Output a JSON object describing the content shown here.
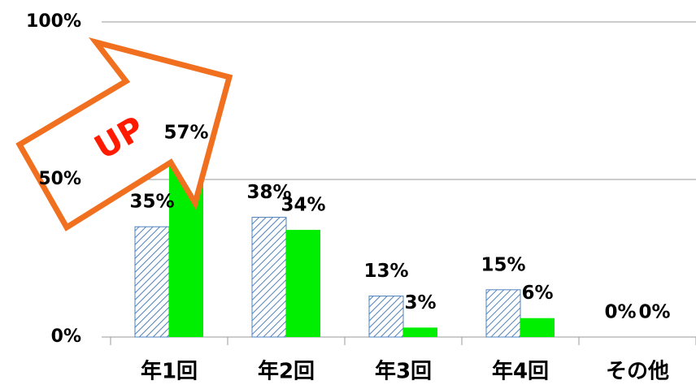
{
  "chart_data": {
    "type": "bar",
    "categories": [
      "年1回",
      "年2回",
      "年3回",
      "年4回",
      "その他"
    ],
    "series": [
      {
        "color": "#4f81bd",
        "hatch": true,
        "values": [
          35,
          38,
          13,
          15,
          0
        ],
        "value_labels": [
          "35%",
          "38%",
          "13%",
          "15%",
          "0%"
        ]
      },
      {
        "color": "#00ee00",
        "hatch": false,
        "values": [
          57,
          34,
          3,
          6,
          0
        ],
        "value_labels": [
          "57%",
          "34%",
          "3%",
          "6%",
          "0%"
        ]
      }
    ],
    "ylim": [
      0,
      100
    ],
    "yticks": [
      {
        "value": 0,
        "label": "0%"
      },
      {
        "value": 50,
        "label": "50%"
      },
      {
        "value": 100,
        "label": "100%"
      }
    ],
    "grid": true,
    "annotation": "UP"
  }
}
